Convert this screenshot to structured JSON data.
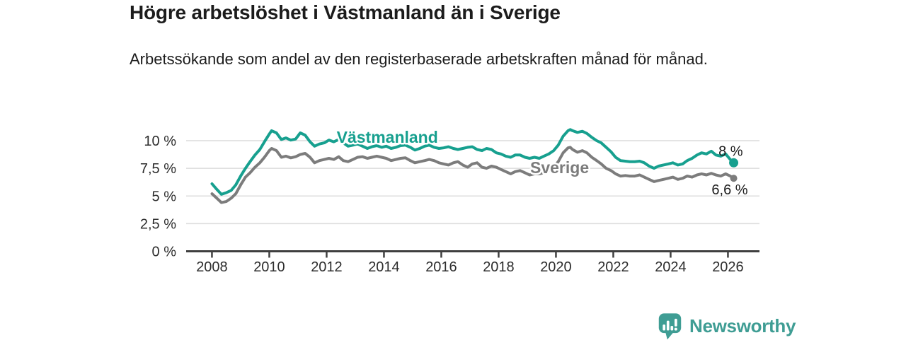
{
  "header": {
    "title": "Högre arbetslöshet i Västmanland än i Sverige",
    "subtitle": "Arbetssökande som andel av den registerbaserade arbetskraften månad för månad."
  },
  "branding": {
    "name": "Newsworthy",
    "icon": "bar-chart-speech-bubble",
    "color": "#3F9D94"
  },
  "chart_data": {
    "type": "line",
    "title": "Högre arbetslöshet i Västmanland än i Sverige",
    "subtitle": "Arbetssökande som andel av den registerbaserade arbetskraften månad för månad.",
    "grid": true,
    "legend_position": "inline-series-labels",
    "x_axis": {
      "range": [
        2007.1,
        2027.1
      ],
      "tick_values": [
        2008,
        2010,
        2012,
        2014,
        2016,
        2018,
        2020,
        2022,
        2024,
        2026
      ],
      "tick_labels": [
        "2008",
        "2010",
        "2012",
        "2014",
        "2016",
        "2018",
        "2020",
        "2022",
        "2024",
        "2026"
      ]
    },
    "y_axis": {
      "unit": "%",
      "range": [
        0,
        11.5
      ],
      "ticks": [
        {
          "value": 10,
          "label": "10 %"
        },
        {
          "value": 7.5,
          "label": "7,5 %"
        },
        {
          "value": 5,
          "label": "5 %"
        },
        {
          "value": 2.5,
          "label": "2,5 %"
        },
        {
          "value": 0,
          "label": "0 %"
        }
      ]
    },
    "series": [
      {
        "name": "Västmanland",
        "color": "#17A08F",
        "end_label": "8 %",
        "end_value": 8.0,
        "name_label_pos": {
          "x": 2012.35,
          "y": 9.8
        },
        "end_label_offset": {
          "dx": 13,
          "dy": -10
        },
        "points": [
          [
            2008.0,
            6.1
          ],
          [
            2008.17,
            5.6
          ],
          [
            2008.33,
            5.15
          ],
          [
            2008.5,
            5.3
          ],
          [
            2008.67,
            5.5
          ],
          [
            2008.83,
            6.0
          ],
          [
            2009.0,
            6.8
          ],
          [
            2009.17,
            7.5
          ],
          [
            2009.33,
            8.1
          ],
          [
            2009.5,
            8.7
          ],
          [
            2009.67,
            9.2
          ],
          [
            2009.83,
            9.9
          ],
          [
            2010.0,
            10.6
          ],
          [
            2010.08,
            10.9
          ],
          [
            2010.25,
            10.7
          ],
          [
            2010.42,
            10.1
          ],
          [
            2010.58,
            10.25
          ],
          [
            2010.75,
            10.05
          ],
          [
            2010.92,
            10.15
          ],
          [
            2011.08,
            10.7
          ],
          [
            2011.25,
            10.5
          ],
          [
            2011.42,
            9.9
          ],
          [
            2011.58,
            9.5
          ],
          [
            2011.75,
            9.7
          ],
          [
            2011.92,
            9.8
          ],
          [
            2012.08,
            10.05
          ],
          [
            2012.25,
            9.9
          ],
          [
            2012.42,
            10.1
          ],
          [
            2012.58,
            9.8
          ],
          [
            2012.75,
            9.5
          ],
          [
            2012.92,
            9.6
          ],
          [
            2013.08,
            9.7
          ],
          [
            2013.25,
            9.5
          ],
          [
            2013.42,
            9.3
          ],
          [
            2013.58,
            9.45
          ],
          [
            2013.75,
            9.55
          ],
          [
            2013.92,
            9.4
          ],
          [
            2014.08,
            9.5
          ],
          [
            2014.25,
            9.3
          ],
          [
            2014.42,
            9.4
          ],
          [
            2014.58,
            9.55
          ],
          [
            2014.75,
            9.6
          ],
          [
            2014.92,
            9.4
          ],
          [
            2015.08,
            9.15
          ],
          [
            2015.25,
            9.3
          ],
          [
            2015.42,
            9.5
          ],
          [
            2015.58,
            9.6
          ],
          [
            2015.75,
            9.4
          ],
          [
            2015.92,
            9.3
          ],
          [
            2016.08,
            9.35
          ],
          [
            2016.25,
            9.45
          ],
          [
            2016.42,
            9.3
          ],
          [
            2016.58,
            9.2
          ],
          [
            2016.75,
            9.3
          ],
          [
            2016.92,
            9.4
          ],
          [
            2017.08,
            9.45
          ],
          [
            2017.25,
            9.2
          ],
          [
            2017.42,
            9.1
          ],
          [
            2017.58,
            9.3
          ],
          [
            2017.75,
            9.2
          ],
          [
            2017.92,
            8.9
          ],
          [
            2018.08,
            8.8
          ],
          [
            2018.25,
            8.6
          ],
          [
            2018.42,
            8.5
          ],
          [
            2018.58,
            8.7
          ],
          [
            2018.75,
            8.7
          ],
          [
            2018.92,
            8.5
          ],
          [
            2019.08,
            8.4
          ],
          [
            2019.25,
            8.5
          ],
          [
            2019.42,
            8.4
          ],
          [
            2019.58,
            8.6
          ],
          [
            2019.75,
            8.8
          ],
          [
            2019.92,
            9.1
          ],
          [
            2020.08,
            9.6
          ],
          [
            2020.25,
            10.4
          ],
          [
            2020.42,
            10.9
          ],
          [
            2020.5,
            11.0
          ],
          [
            2020.58,
            10.9
          ],
          [
            2020.75,
            10.75
          ],
          [
            2020.92,
            10.85
          ],
          [
            2021.08,
            10.65
          ],
          [
            2021.25,
            10.3
          ],
          [
            2021.42,
            10.0
          ],
          [
            2021.58,
            9.8
          ],
          [
            2021.75,
            9.4
          ],
          [
            2021.92,
            9.0
          ],
          [
            2022.08,
            8.5
          ],
          [
            2022.25,
            8.2
          ],
          [
            2022.42,
            8.15
          ],
          [
            2022.58,
            8.1
          ],
          [
            2022.75,
            8.1
          ],
          [
            2022.92,
            8.15
          ],
          [
            2023.08,
            8.0
          ],
          [
            2023.25,
            7.7
          ],
          [
            2023.42,
            7.5
          ],
          [
            2023.58,
            7.7
          ],
          [
            2023.75,
            7.8
          ],
          [
            2023.92,
            7.9
          ],
          [
            2024.08,
            8.0
          ],
          [
            2024.25,
            7.8
          ],
          [
            2024.42,
            7.9
          ],
          [
            2024.58,
            8.2
          ],
          [
            2024.75,
            8.4
          ],
          [
            2024.92,
            8.7
          ],
          [
            2025.08,
            8.9
          ],
          [
            2025.25,
            8.8
          ],
          [
            2025.42,
            9.05
          ],
          [
            2025.58,
            8.7
          ],
          [
            2025.75,
            8.6
          ],
          [
            2025.92,
            8.8
          ],
          [
            2026.08,
            8.3
          ],
          [
            2026.2,
            8.0
          ]
        ]
      },
      {
        "name": "Sverige",
        "color": "#7C7C7C",
        "end_label": "6,6 %",
        "end_value": 6.6,
        "name_label_pos": {
          "x": 2019.1,
          "y": 7.05
        },
        "end_label_offset": {
          "dx": 20,
          "dy": 23
        },
        "points": [
          [
            2008.0,
            5.2
          ],
          [
            2008.17,
            4.8
          ],
          [
            2008.33,
            4.4
          ],
          [
            2008.5,
            4.5
          ],
          [
            2008.67,
            4.8
          ],
          [
            2008.83,
            5.2
          ],
          [
            2009.0,
            6.0
          ],
          [
            2009.17,
            6.7
          ],
          [
            2009.33,
            7.1
          ],
          [
            2009.5,
            7.6
          ],
          [
            2009.67,
            8.0
          ],
          [
            2009.83,
            8.5
          ],
          [
            2010.0,
            9.1
          ],
          [
            2010.08,
            9.3
          ],
          [
            2010.25,
            9.1
          ],
          [
            2010.42,
            8.5
          ],
          [
            2010.58,
            8.6
          ],
          [
            2010.75,
            8.45
          ],
          [
            2010.92,
            8.55
          ],
          [
            2011.08,
            8.75
          ],
          [
            2011.25,
            8.85
          ],
          [
            2011.42,
            8.5
          ],
          [
            2011.58,
            8.0
          ],
          [
            2011.75,
            8.2
          ],
          [
            2011.92,
            8.3
          ],
          [
            2012.08,
            8.4
          ],
          [
            2012.25,
            8.3
          ],
          [
            2012.42,
            8.55
          ],
          [
            2012.58,
            8.2
          ],
          [
            2012.75,
            8.1
          ],
          [
            2012.92,
            8.3
          ],
          [
            2013.08,
            8.5
          ],
          [
            2013.25,
            8.55
          ],
          [
            2013.42,
            8.4
          ],
          [
            2013.58,
            8.5
          ],
          [
            2013.75,
            8.6
          ],
          [
            2013.92,
            8.5
          ],
          [
            2014.08,
            8.4
          ],
          [
            2014.25,
            8.2
          ],
          [
            2014.42,
            8.3
          ],
          [
            2014.58,
            8.4
          ],
          [
            2014.75,
            8.45
          ],
          [
            2014.92,
            8.2
          ],
          [
            2015.08,
            8.0
          ],
          [
            2015.25,
            8.1
          ],
          [
            2015.42,
            8.2
          ],
          [
            2015.58,
            8.3
          ],
          [
            2015.75,
            8.2
          ],
          [
            2015.92,
            8.0
          ],
          [
            2016.08,
            7.9
          ],
          [
            2016.25,
            7.8
          ],
          [
            2016.42,
            8.0
          ],
          [
            2016.58,
            8.1
          ],
          [
            2016.75,
            7.8
          ],
          [
            2016.92,
            7.6
          ],
          [
            2017.08,
            7.9
          ],
          [
            2017.25,
            8.0
          ],
          [
            2017.42,
            7.6
          ],
          [
            2017.58,
            7.5
          ],
          [
            2017.75,
            7.7
          ],
          [
            2017.92,
            7.6
          ],
          [
            2018.08,
            7.4
          ],
          [
            2018.25,
            7.2
          ],
          [
            2018.42,
            7.0
          ],
          [
            2018.58,
            7.2
          ],
          [
            2018.75,
            7.3
          ],
          [
            2018.92,
            7.1
          ],
          [
            2019.08,
            6.9
          ],
          [
            2019.25,
            7.0
          ],
          [
            2019.42,
            7.0
          ],
          [
            2019.58,
            7.1
          ],
          [
            2019.75,
            7.3
          ],
          [
            2019.92,
            7.6
          ],
          [
            2020.08,
            8.1
          ],
          [
            2020.25,
            8.9
          ],
          [
            2020.42,
            9.35
          ],
          [
            2020.5,
            9.4
          ],
          [
            2020.58,
            9.2
          ],
          [
            2020.75,
            8.95
          ],
          [
            2020.92,
            9.1
          ],
          [
            2021.08,
            8.9
          ],
          [
            2021.25,
            8.5
          ],
          [
            2021.42,
            8.2
          ],
          [
            2021.58,
            7.9
          ],
          [
            2021.75,
            7.5
          ],
          [
            2021.92,
            7.3
          ],
          [
            2022.08,
            7.0
          ],
          [
            2022.25,
            6.8
          ],
          [
            2022.42,
            6.85
          ],
          [
            2022.58,
            6.8
          ],
          [
            2022.75,
            6.8
          ],
          [
            2022.92,
            6.9
          ],
          [
            2023.08,
            6.7
          ],
          [
            2023.25,
            6.5
          ],
          [
            2023.42,
            6.3
          ],
          [
            2023.58,
            6.4
          ],
          [
            2023.75,
            6.5
          ],
          [
            2023.92,
            6.6
          ],
          [
            2024.08,
            6.7
          ],
          [
            2024.25,
            6.5
          ],
          [
            2024.42,
            6.6
          ],
          [
            2024.58,
            6.8
          ],
          [
            2024.75,
            6.7
          ],
          [
            2024.92,
            6.9
          ],
          [
            2025.08,
            7.0
          ],
          [
            2025.25,
            6.9
          ],
          [
            2025.42,
            7.05
          ],
          [
            2025.58,
            6.9
          ],
          [
            2025.75,
            6.8
          ],
          [
            2025.92,
            7.0
          ],
          [
            2026.08,
            6.8
          ],
          [
            2026.2,
            6.6
          ]
        ]
      }
    ]
  }
}
